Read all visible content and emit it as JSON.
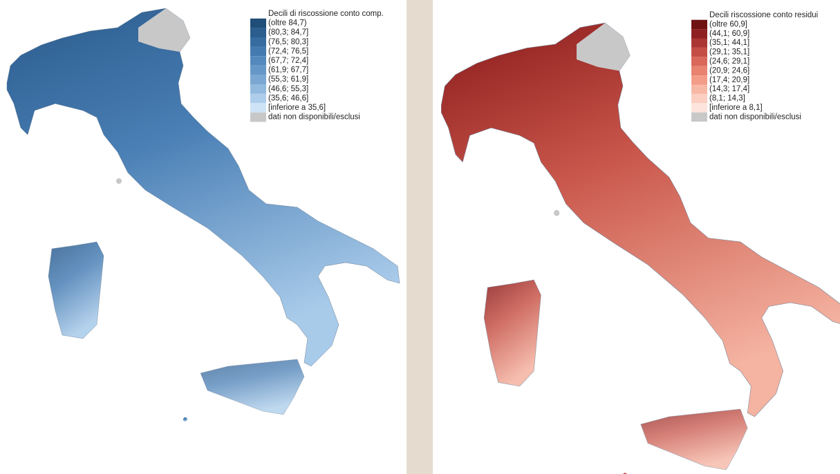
{
  "maps": [
    {
      "legend": {
        "title": "Decili di riscossione conto comp.",
        "items": [
          {
            "label": "(oltre 84,7)",
            "color": "#1f4e79"
          },
          {
            "label": "(80,3; 84,7]",
            "color": "#2b5d8e"
          },
          {
            "label": "(76,5; 80,3]",
            "color": "#366ca0"
          },
          {
            "label": "(72,4; 76,5]",
            "color": "#437bb0"
          },
          {
            "label": "(67,7; 72,4]",
            "color": "#5389bd"
          },
          {
            "label": "(61,9; 67,7]",
            "color": "#6598c8"
          },
          {
            "label": "(55,3; 61,9]",
            "color": "#7aa8d3"
          },
          {
            "label": "(46,6; 55,3]",
            "color": "#92badf"
          },
          {
            "label": "(35,6; 46,6]",
            "color": "#adcdeb"
          },
          {
            "label": "[inferiore a 35,6]",
            "color": "#cfe3f6"
          },
          {
            "label": "dati non disponibili/esclusi",
            "color": "#c8c8c8"
          }
        ]
      }
    },
    {
      "legend": {
        "title": "Decili riscossione conto residui",
        "items": [
          {
            "label": "(oltre 60,9]",
            "color": "#6e1214"
          },
          {
            "label": "(44,1; 60,9]",
            "color": "#8e2022"
          },
          {
            "label": "(35,1; 44,1]",
            "color": "#ab3532"
          },
          {
            "label": "(29,1; 35,1]",
            "color": "#c44e45"
          },
          {
            "label": "(24,6; 29,1]",
            "color": "#d9675a"
          },
          {
            "label": "(20,9; 24,6]",
            "color": "#e9826f"
          },
          {
            "label": "(17,4; 20,9]",
            "color": "#f39d89"
          },
          {
            "label": "(14,3; 17,4]",
            "color": "#f8b8a6"
          },
          {
            "label": "(8,1; 14,3]",
            "color": "#fbcfc2"
          },
          {
            "label": "[inferiore a 8,1]",
            "color": "#fde4dc"
          },
          {
            "label": "dati non disponibili/esclusi",
            "color": "#c8c8c8"
          }
        ]
      }
    }
  ]
}
